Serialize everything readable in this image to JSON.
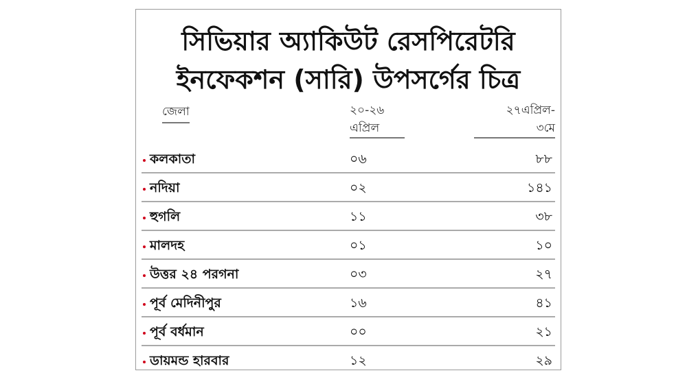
{
  "title": {
    "line1": "সিভিয়ার অ্যাকিউট রেসপিরেটরি",
    "line2": "ইনফেকশন (সারি) উপসর্গের চিত্র"
  },
  "header": {
    "district": "জেলা",
    "col1_line1": "২০-২৬",
    "col1_line2": "এপ্রিল",
    "col2_line1": "২৭এপ্রিল-",
    "col2_line2": "৩মে"
  },
  "bullet_color": "#d0021b",
  "rows": [
    {
      "district": "কলকাতা",
      "col1": "০৬",
      "col2": "৮৮"
    },
    {
      "district": "নদিয়া",
      "col1": "০২",
      "col2": "১৪১"
    },
    {
      "district": "হুগলি",
      "col1": "১১",
      "col2": "৩৮"
    },
    {
      "district": "মালদহ",
      "col1": "০১",
      "col2": "১০"
    },
    {
      "district": "উত্তর ২৪ পরগনা",
      "col1": "০৩",
      "col2": "২৭"
    },
    {
      "district": "পূর্ব মেদিনীপুর",
      "col1": "১৬",
      "col2": "৪১"
    },
    {
      "district": "পূর্ব বর্ধমান",
      "col1": "০০",
      "col2": "২১"
    },
    {
      "district": "ডায়মন্ড হারবার",
      "col1": "১২",
      "col2": "২৯"
    }
  ]
}
